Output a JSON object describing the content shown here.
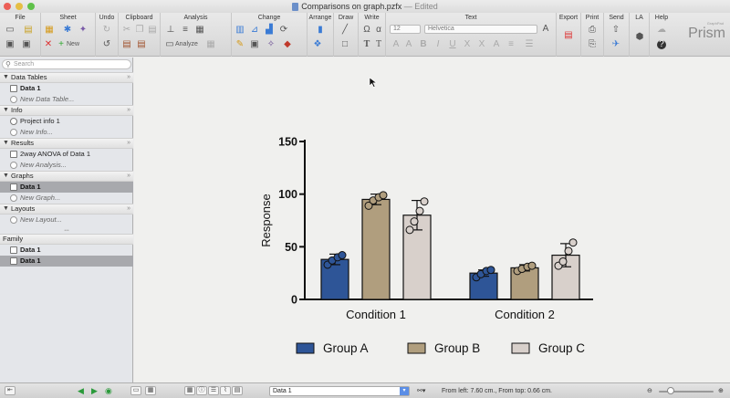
{
  "window": {
    "title": "Comparisons on graph.pzfx",
    "edited_suffix": " — Edited"
  },
  "toolbar": {
    "groups": [
      "File",
      "Sheet",
      "Undo",
      "Clipboard",
      "Analysis",
      "Change",
      "Arrange",
      "Draw",
      "Write",
      "Text",
      "Export",
      "Print",
      "Send",
      "LA",
      "Help"
    ],
    "sheet_new_label": "New",
    "analyze_label": "Analyze",
    "font_size_value": "12",
    "font_name_value": "Helvetica",
    "brand": "Prism",
    "brand_small": "GraphPad"
  },
  "sidebar": {
    "search_placeholder": "Search",
    "sections": [
      {
        "label": "Data Tables",
        "items": [
          {
            "label": "Data 1"
          },
          {
            "label": "New Data Table..."
          }
        ]
      },
      {
        "label": "Info",
        "items": [
          {
            "label": "Project info 1"
          },
          {
            "label": "New Info..."
          }
        ]
      },
      {
        "label": "Results",
        "items": [
          {
            "label": "2way ANOVA of Data 1"
          },
          {
            "label": "New Analysis..."
          }
        ]
      },
      {
        "label": "Graphs",
        "items": [
          {
            "label": "Data 1"
          },
          {
            "label": "New Graph..."
          }
        ]
      },
      {
        "label": "Layouts",
        "items": [
          {
            "label": "New Layout..."
          }
        ]
      }
    ],
    "family": {
      "label": "Family",
      "items": [
        {
          "label": "Data 1"
        },
        {
          "label": "Data 1"
        }
      ]
    }
  },
  "chart_data": {
    "type": "bar",
    "categories": [
      "Condition 1",
      "Condition 2"
    ],
    "ylabel": "Response",
    "xlabel": "",
    "ylim": [
      0,
      150
    ],
    "yticks": [
      0,
      50,
      100,
      150
    ],
    "legend_position": "bottom",
    "series": [
      {
        "name": "Group A",
        "color": "#2e5597",
        "values": [
          38,
          25
        ],
        "sd": [
          5,
          3
        ],
        "points": [
          [
            33,
            37,
            40,
            42
          ],
          [
            21,
            24,
            27,
            28
          ]
        ]
      },
      {
        "name": "Group B",
        "color": "#b09e7e",
        "values": [
          95,
          30
        ],
        "sd": [
          5,
          3
        ],
        "points": [
          [
            89,
            94,
            97,
            99
          ],
          [
            27,
            29,
            31,
            32
          ]
        ]
      },
      {
        "name": "Group C",
        "color": "#d8d0cb",
        "values": [
          80,
          42
        ],
        "sd": [
          14,
          11
        ],
        "points": [
          [
            66,
            74,
            84,
            93
          ],
          [
            32,
            36,
            46,
            54
          ]
        ]
      }
    ]
  },
  "statusbar": {
    "sheet_value": "Data 1",
    "position_text": "From left: 7.60 cm., From top: 0.66 cm."
  }
}
